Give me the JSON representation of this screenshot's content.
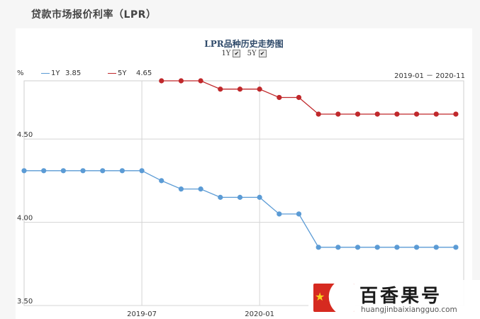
{
  "page": {
    "title": "贷款市场报价利率（LPR）"
  },
  "chart_data": {
    "type": "line",
    "title": "LPR品种历史走势图",
    "toggles": [
      {
        "label": "1Y",
        "checked": true,
        "mark": "✔"
      },
      {
        "label": "5Y",
        "checked": true,
        "mark": "✔"
      }
    ],
    "unit_label": "%",
    "legend": [
      {
        "name": "1Y",
        "value": "3.85",
        "color": "#5b9bd5"
      },
      {
        "name": "5Y",
        "value": "4.65",
        "color": "#c0282b"
      }
    ],
    "date_range": "2019-01 － 2020-11",
    "y_ticks": [
      "4.50",
      "4.00",
      "3.50"
    ],
    "y_tick_values": [
      4.5,
      4.0,
      3.5
    ],
    "ylim": [
      3.5,
      4.85
    ],
    "x_ticks": [
      "2019-07",
      "2020-01"
    ],
    "x_tick_months": [
      6,
      12
    ],
    "xlim": [
      0,
      22.4
    ],
    "series": [
      {
        "name": "1Y",
        "color": "#5b9bd5",
        "months": [
          0,
          1,
          2,
          3,
          4,
          5,
          6,
          7,
          8,
          9,
          10,
          11,
          12,
          13,
          14,
          15,
          16,
          17,
          18,
          19,
          20,
          21,
          22
        ],
        "values": [
          4.31,
          4.31,
          4.31,
          4.31,
          4.31,
          4.31,
          4.31,
          4.25,
          4.2,
          4.2,
          4.15,
          4.15,
          4.15,
          4.05,
          4.05,
          3.85,
          3.85,
          3.85,
          3.85,
          3.85,
          3.85,
          3.85,
          3.85
        ]
      },
      {
        "name": "5Y",
        "color": "#c0282b",
        "months": [
          7,
          8,
          9,
          10,
          11,
          12,
          13,
          14,
          15,
          16,
          17,
          18,
          19,
          20,
          21,
          22
        ],
        "values": [
          4.85,
          4.85,
          4.85,
          4.8,
          4.8,
          4.8,
          4.75,
          4.75,
          4.65,
          4.65,
          4.65,
          4.65,
          4.65,
          4.65,
          4.65,
          4.65
        ]
      }
    ]
  },
  "watermark": {
    "brand": "百香果号",
    "url": "huangjinbaixiangguo.com"
  }
}
